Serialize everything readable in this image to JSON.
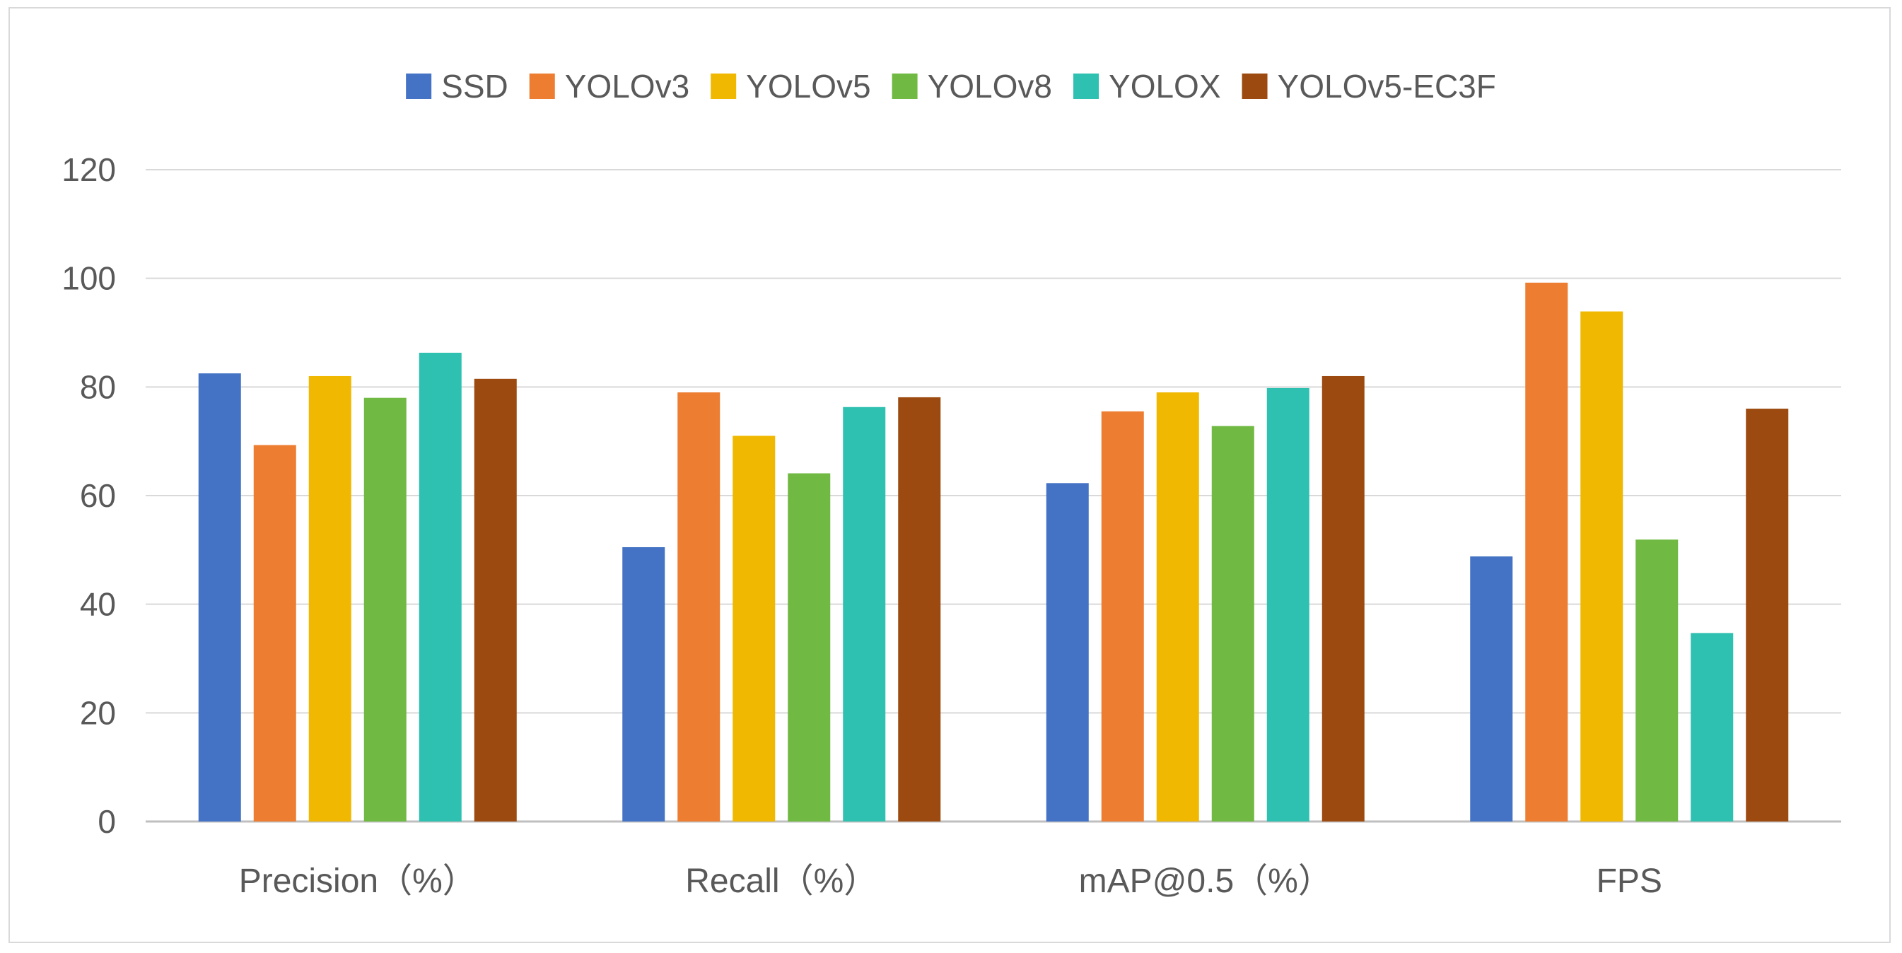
{
  "chart_data": {
    "type": "bar",
    "title": "",
    "xlabel": "",
    "ylabel": "",
    "categories": [
      "Precision（%）",
      "Recall（%）",
      "mAP@0.5（%）",
      "FPS"
    ],
    "series": [
      {
        "name": "SSD",
        "color": "#4472c4",
        "values": [
          82.5,
          50.5,
          62.3,
          48.8
        ]
      },
      {
        "name": "YOLOv3",
        "color": "#ed7d31",
        "values": [
          69.3,
          79.0,
          75.5,
          99.2
        ]
      },
      {
        "name": "YOLOv5",
        "color": "#f0b800",
        "values": [
          82.0,
          71.0,
          79.0,
          93.9
        ]
      },
      {
        "name": "YOLOv8",
        "color": "#70b942",
        "values": [
          78.0,
          64.1,
          72.8,
          51.9
        ]
      },
      {
        "name": "YOLOX",
        "color": "#2ec0b0",
        "values": [
          86.3,
          76.3,
          79.8,
          34.7
        ]
      },
      {
        "name": "YOLOv5-EC3F",
        "color": "#9c4a0f",
        "values": [
          81.5,
          78.1,
          82.0,
          76.0
        ]
      }
    ],
    "ylim": [
      0,
      120
    ],
    "yticks": [
      0,
      20,
      40,
      60,
      80,
      100,
      120
    ],
    "grid": true,
    "legend_position": "top-center"
  }
}
